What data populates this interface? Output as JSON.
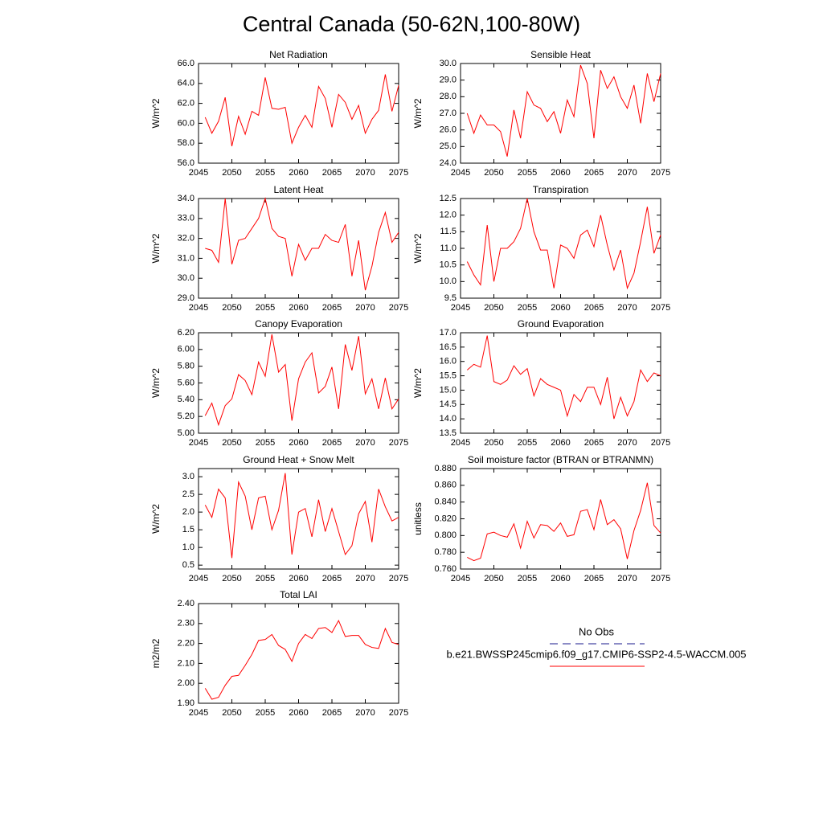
{
  "title": "Central Canada (50-62N,100-80W)",
  "legend": [
    {
      "name": "No Obs",
      "color": "#1a1a8c",
      "dash": true
    },
    {
      "name": "b.e21.BWSSP245cmip6.f09_g17.CMIP6-SSP2-4.5-WACCM.005",
      "color": "#ff0000",
      "dash": false
    }
  ],
  "chart_data": [
    {
      "type": "line",
      "title": "Net Radiation",
      "ylabel": "W/m^2",
      "color": "#ff0000",
      "x": [
        2046,
        2047,
        2048,
        2049,
        2050,
        2051,
        2052,
        2053,
        2054,
        2055,
        2056,
        2057,
        2058,
        2059,
        2060,
        2061,
        2062,
        2063,
        2064,
        2065,
        2066,
        2067,
        2068,
        2069,
        2070,
        2071,
        2072,
        2073,
        2074,
        2075
      ],
      "values": [
        60.6,
        59.0,
        60.2,
        62.6,
        57.7,
        60.7,
        58.9,
        61.2,
        60.8,
        64.6,
        61.5,
        61.4,
        61.6,
        58.0,
        59.6,
        60.8,
        59.6,
        63.7,
        62.5,
        59.6,
        62.9,
        62.1,
        60.4,
        61.8,
        59.0,
        60.4,
        61.3,
        64.9,
        61.2,
        63.8
      ],
      "xlim": [
        2045,
        2075
      ],
      "xticks": [
        2045,
        2050,
        2055,
        2060,
        2065,
        2070,
        2075
      ],
      "ylim": [
        56,
        66
      ],
      "yticks": [
        {
          "value": 56,
          "label": "56.0"
        },
        {
          "value": 58,
          "label": "58.0"
        },
        {
          "value": 60,
          "label": "60.0"
        },
        {
          "value": 62,
          "label": "62.0"
        },
        {
          "value": 64,
          "label": "64.0"
        },
        {
          "value": 66,
          "label": "66.0"
        }
      ]
    },
    {
      "type": "line",
      "title": "Sensible Heat",
      "ylabel": "W/m^2",
      "color": "#ff0000",
      "x": [
        2046,
        2047,
        2048,
        2049,
        2050,
        2051,
        2052,
        2053,
        2054,
        2055,
        2056,
        2057,
        2058,
        2059,
        2060,
        2061,
        2062,
        2063,
        2064,
        2065,
        2066,
        2067,
        2068,
        2069,
        2070,
        2071,
        2072,
        2073,
        2074,
        2075
      ],
      "values": [
        27.0,
        25.8,
        26.9,
        26.3,
        26.3,
        25.9,
        24.4,
        27.2,
        25.5,
        28.3,
        27.5,
        27.3,
        26.5,
        27.1,
        25.8,
        27.8,
        26.8,
        29.9,
        28.8,
        25.5,
        29.6,
        28.5,
        29.2,
        28.0,
        27.3,
        28.7,
        26.4,
        29.4,
        27.7,
        29.4
      ],
      "xlim": [
        2045,
        2075
      ],
      "xticks": [
        2045,
        2050,
        2055,
        2060,
        2065,
        2070,
        2075
      ],
      "ylim": [
        24,
        30
      ],
      "yticks": [
        {
          "value": 24,
          "label": "24.0"
        },
        {
          "value": 25,
          "label": "25.0"
        },
        {
          "value": 26,
          "label": "26.0"
        },
        {
          "value": 27,
          "label": "27.0"
        },
        {
          "value": 28,
          "label": "28.0"
        },
        {
          "value": 29,
          "label": "29.0"
        },
        {
          "value": 30,
          "label": "30.0"
        }
      ]
    },
    {
      "type": "line",
      "title": "Latent Heat",
      "ylabel": "W/m^2",
      "color": "#ff0000",
      "x": [
        2046,
        2047,
        2048,
        2049,
        2050,
        2051,
        2052,
        2053,
        2054,
        2055,
        2056,
        2057,
        2058,
        2059,
        2060,
        2061,
        2062,
        2063,
        2064,
        2065,
        2066,
        2067,
        2068,
        2069,
        2070,
        2071,
        2072,
        2073,
        2074,
        2075
      ],
      "values": [
        31.5,
        31.4,
        30.8,
        34.0,
        30.7,
        31.9,
        32.0,
        32.5,
        33.0,
        34.0,
        32.5,
        32.1,
        32.0,
        30.1,
        31.7,
        30.9,
        31.5,
        31.5,
        32.2,
        31.9,
        31.8,
        32.7,
        30.1,
        31.9,
        29.4,
        30.6,
        32.3,
        33.3,
        31.8,
        32.3
      ],
      "xlim": [
        2045,
        2075
      ],
      "xticks": [
        2045,
        2050,
        2055,
        2060,
        2065,
        2070,
        2075
      ],
      "ylim": [
        29,
        34
      ],
      "yticks": [
        {
          "value": 29,
          "label": "29.0"
        },
        {
          "value": 30,
          "label": "30.0"
        },
        {
          "value": 31,
          "label": "31.0"
        },
        {
          "value": 32,
          "label": "32.0"
        },
        {
          "value": 33,
          "label": "33.0"
        },
        {
          "value": 34,
          "label": "34.0"
        }
      ]
    },
    {
      "type": "line",
      "title": "Transpiration",
      "ylabel": "W/m^2",
      "color": "#ff0000",
      "x": [
        2046,
        2047,
        2048,
        2049,
        2050,
        2051,
        2052,
        2053,
        2054,
        2055,
        2056,
        2057,
        2058,
        2059,
        2060,
        2061,
        2062,
        2063,
        2064,
        2065,
        2066,
        2067,
        2068,
        2069,
        2070,
        2071,
        2072,
        2073,
        2074,
        2075
      ],
      "values": [
        10.6,
        10.2,
        9.9,
        11.7,
        10.0,
        11.0,
        11.0,
        11.2,
        11.6,
        12.5,
        11.5,
        10.95,
        10.95,
        9.8,
        11.1,
        11.0,
        10.7,
        11.4,
        11.55,
        11.05,
        12.0,
        11.1,
        10.35,
        10.95,
        9.8,
        10.25,
        11.2,
        12.25,
        10.85,
        11.4
      ],
      "xlim": [
        2045,
        2075
      ],
      "xticks": [
        2045,
        2050,
        2055,
        2060,
        2065,
        2070,
        2075
      ],
      "ylim": [
        9.5,
        12.5
      ],
      "yticks": [
        9.5,
        {
          "value": 10,
          "label": "10.0"
        },
        10.5,
        {
          "value": 11,
          "label": "11.0"
        },
        11.5,
        {
          "value": 12,
          "label": "12.0"
        },
        12.5
      ]
    },
    {
      "type": "line",
      "title": "Canopy Evaporation",
      "ylabel": "W/m^2",
      "color": "#ff0000",
      "x": [
        2046,
        2047,
        2048,
        2049,
        2050,
        2051,
        2052,
        2053,
        2054,
        2055,
        2056,
        2057,
        2058,
        2059,
        2060,
        2061,
        2062,
        2063,
        2064,
        2065,
        2066,
        2067,
        2068,
        2069,
        2070,
        2071,
        2072,
        2073,
        2074,
        2075
      ],
      "values": [
        5.21,
        5.36,
        5.1,
        5.33,
        5.41,
        5.7,
        5.63,
        5.46,
        5.85,
        5.68,
        6.18,
        5.73,
        5.82,
        5.15,
        5.65,
        5.85,
        5.96,
        5.48,
        5.56,
        5.79,
        5.29,
        6.06,
        5.75,
        6.16,
        5.47,
        5.65,
        5.29,
        5.66,
        5.29,
        5.41
      ],
      "xlim": [
        2045,
        2075
      ],
      "xticks": [
        2045,
        2050,
        2055,
        2060,
        2065,
        2070,
        2075
      ],
      "ylim": [
        5.0,
        6.2
      ],
      "yticks": [
        {
          "value": 5.0,
          "label": "5.00"
        },
        {
          "value": 5.2,
          "label": "5.20"
        },
        {
          "value": 5.4,
          "label": "5.40"
        },
        {
          "value": 5.6,
          "label": "5.60"
        },
        {
          "value": 5.8,
          "label": "5.80"
        },
        {
          "value": 6.0,
          "label": "6.00"
        },
        {
          "value": 6.2,
          "label": "6.20"
        }
      ]
    },
    {
      "type": "line",
      "title": "Ground Evaporation",
      "ylabel": "W/m^2",
      "color": "#ff0000",
      "x": [
        2046,
        2047,
        2048,
        2049,
        2050,
        2051,
        2052,
        2053,
        2054,
        2055,
        2056,
        2057,
        2058,
        2059,
        2060,
        2061,
        2062,
        2063,
        2064,
        2065,
        2066,
        2067,
        2068,
        2069,
        2070,
        2071,
        2072,
        2073,
        2074,
        2075
      ],
      "values": [
        15.7,
        15.9,
        15.8,
        16.9,
        15.3,
        15.2,
        15.35,
        15.85,
        15.55,
        15.75,
        14.8,
        15.4,
        15.2,
        15.1,
        15.0,
        14.1,
        14.85,
        14.6,
        15.1,
        15.1,
        14.5,
        15.45,
        14.0,
        14.75,
        14.1,
        14.6,
        15.7,
        15.3,
        15.6,
        15.5
      ],
      "xlim": [
        2045,
        2075
      ],
      "xticks": [
        2045,
        2050,
        2055,
        2060,
        2065,
        2070,
        2075
      ],
      "ylim": [
        13.5,
        17.0
      ],
      "yticks": [
        13.5,
        {
          "value": 14,
          "label": "14.0"
        },
        14.5,
        {
          "value": 15,
          "label": "15.0"
        },
        15.5,
        {
          "value": 16,
          "label": "16.0"
        },
        16.5,
        {
          "value": 17,
          "label": "17.0"
        }
      ]
    },
    {
      "type": "line",
      "title": "Ground Heat + Snow Melt",
      "ylabel": "W/m^2",
      "color": "#ff0000",
      "x": [
        2046,
        2047,
        2048,
        2049,
        2050,
        2051,
        2052,
        2053,
        2054,
        2055,
        2056,
        2057,
        2058,
        2059,
        2060,
        2061,
        2062,
        2063,
        2064,
        2065,
        2066,
        2067,
        2068,
        2069,
        2070,
        2071,
        2072,
        2073,
        2074,
        2075
      ],
      "values": [
        2.2,
        1.85,
        2.65,
        2.4,
        0.7,
        2.85,
        2.45,
        1.5,
        2.4,
        2.45,
        1.5,
        2.05,
        3.1,
        0.8,
        2.0,
        2.1,
        1.3,
        2.35,
        1.45,
        2.1,
        1.45,
        0.8,
        1.05,
        1.95,
        2.3,
        1.15,
        2.65,
        2.15,
        1.75,
        1.85
      ],
      "xlim": [
        2045,
        2075
      ],
      "xticks": [
        2045,
        2050,
        2055,
        2060,
        2065,
        2070,
        2075
      ],
      "ylim": [
        0.39,
        3.23
      ],
      "yticks": [
        0.5,
        {
          "value": 1,
          "label": "1.0"
        },
        1.5,
        {
          "value": 2,
          "label": "2.0"
        },
        2.5,
        {
          "value": 3,
          "label": "3.0"
        }
      ]
    },
    {
      "type": "line",
      "title": "Soil moisture factor (BTRAN or BTRANMN)",
      "ylabel": "unitless",
      "color": "#ff0000",
      "x": [
        2046,
        2047,
        2048,
        2049,
        2050,
        2051,
        2052,
        2053,
        2054,
        2055,
        2056,
        2057,
        2058,
        2059,
        2060,
        2061,
        2062,
        2063,
        2064,
        2065,
        2066,
        2067,
        2068,
        2069,
        2070,
        2071,
        2072,
        2073,
        2074,
        2075
      ],
      "values": [
        0.774,
        0.77,
        0.773,
        0.802,
        0.804,
        0.8,
        0.798,
        0.814,
        0.785,
        0.817,
        0.797,
        0.813,
        0.812,
        0.805,
        0.815,
        0.799,
        0.801,
        0.829,
        0.831,
        0.807,
        0.843,
        0.813,
        0.819,
        0.808,
        0.772,
        0.806,
        0.83,
        0.863,
        0.812,
        0.803
      ],
      "xlim": [
        2045,
        2075
      ],
      "xticks": [
        2045,
        2050,
        2055,
        2060,
        2065,
        2070,
        2075
      ],
      "ylim": [
        0.76,
        0.88
      ],
      "yticks": [
        {
          "value": 0.76,
          "label": "0.760"
        },
        {
          "value": 0.78,
          "label": "0.780"
        },
        {
          "value": 0.8,
          "label": "0.800"
        },
        {
          "value": 0.82,
          "label": "0.820"
        },
        {
          "value": 0.84,
          "label": "0.840"
        },
        {
          "value": 0.86,
          "label": "0.860"
        },
        {
          "value": 0.88,
          "label": "0.880"
        }
      ]
    },
    {
      "type": "line",
      "title": "Total LAI",
      "ylabel": "m2/m2",
      "color": "#ff0000",
      "x": [
        2046,
        2047,
        2048,
        2049,
        2050,
        2051,
        2052,
        2053,
        2054,
        2055,
        2056,
        2057,
        2058,
        2059,
        2060,
        2061,
        2062,
        2063,
        2064,
        2065,
        2066,
        2067,
        2068,
        2069,
        2070,
        2071,
        2072,
        2073,
        2074,
        2075
      ],
      "values": [
        1.975,
        1.92,
        1.93,
        1.99,
        2.035,
        2.04,
        2.09,
        2.145,
        2.215,
        2.22,
        2.245,
        2.19,
        2.17,
        2.11,
        2.2,
        2.245,
        2.225,
        2.275,
        2.28,
        2.255,
        2.315,
        2.235,
        2.24,
        2.24,
        2.195,
        2.18,
        2.175,
        2.275,
        2.205,
        2.195
      ],
      "xlim": [
        2045,
        2075
      ],
      "xticks": [
        2045,
        2050,
        2055,
        2060,
        2065,
        2070,
        2075
      ],
      "ylim": [
        1.9,
        2.4
      ],
      "yticks": [
        {
          "value": 1.9,
          "label": "1.90"
        },
        {
          "value": 2.0,
          "label": "2.00"
        },
        {
          "value": 2.1,
          "label": "2.10"
        },
        {
          "value": 2.2,
          "label": "2.20"
        },
        {
          "value": 2.3,
          "label": "2.30"
        },
        {
          "value": 2.4,
          "label": "2.40"
        }
      ]
    }
  ]
}
